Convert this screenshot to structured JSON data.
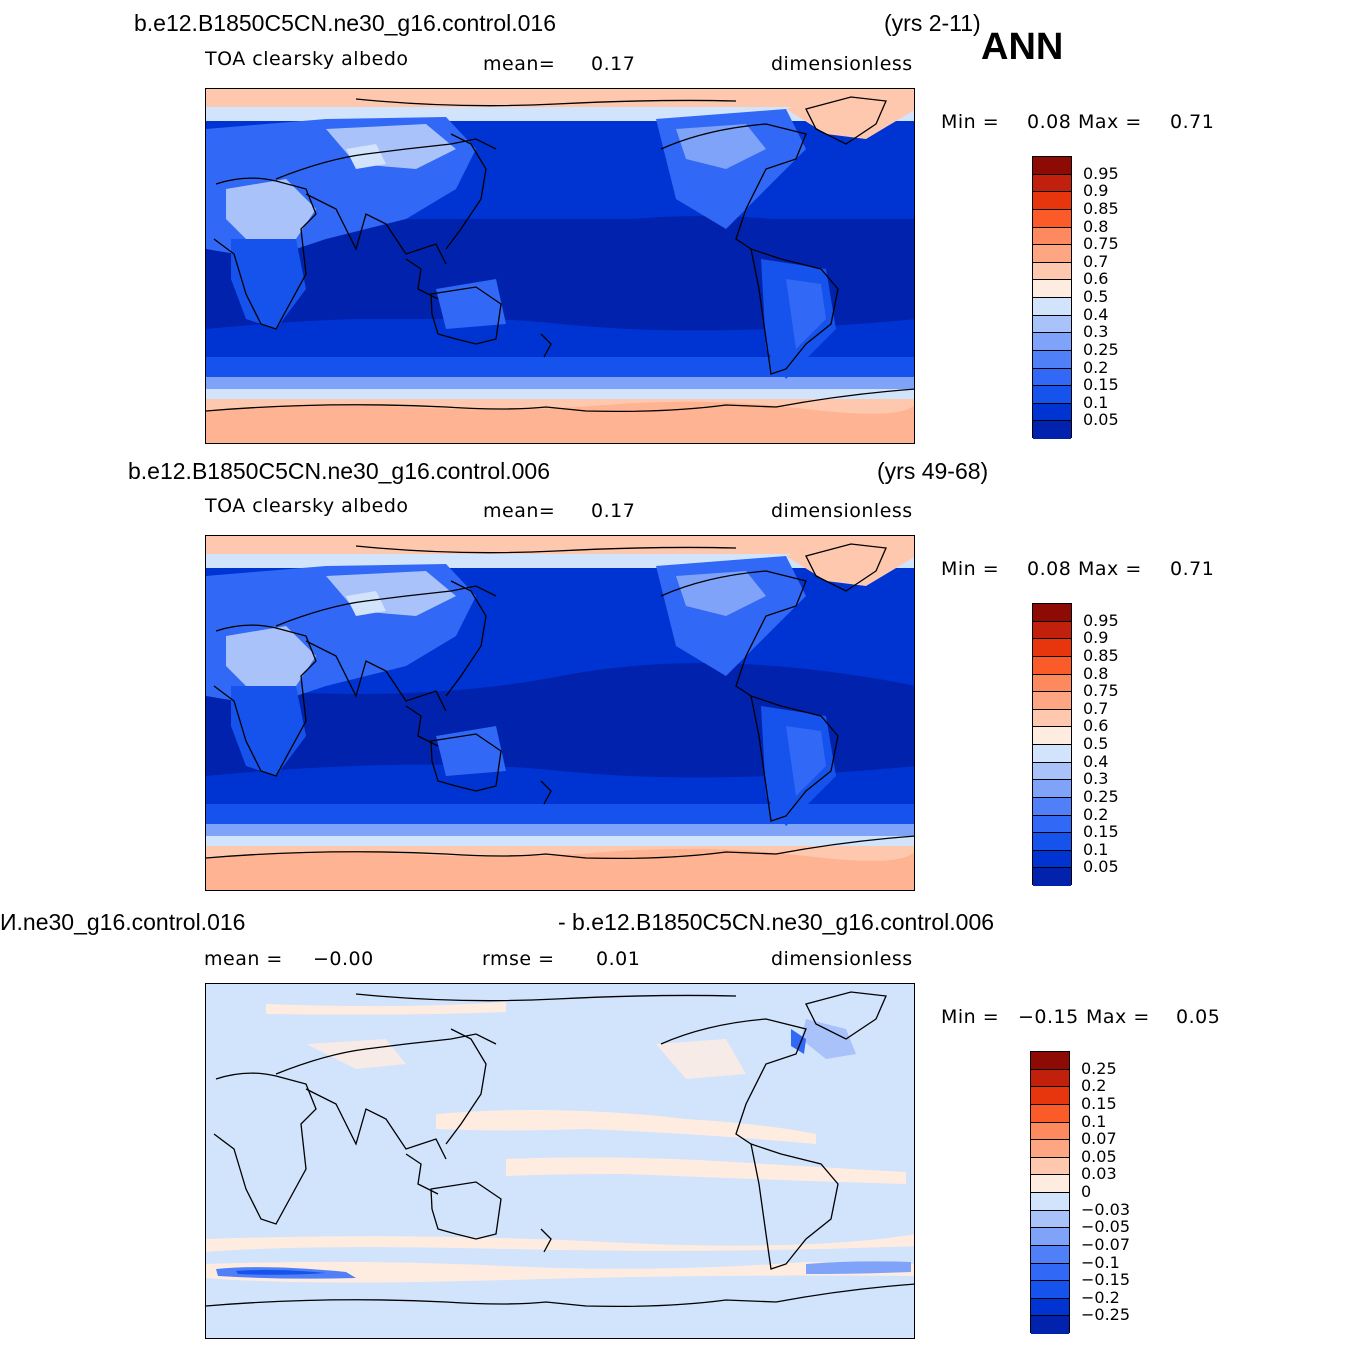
{
  "season": "ANN",
  "colors": {
    "abs_scale": [
      "#000e7f",
      "#0022ad",
      "#0034d2",
      "#1553ec",
      "#3168f6",
      "#4f80f8",
      "#7fa3f8",
      "#a9c2f9",
      "#d2e3fc",
      "#ffece0",
      "#fec8ae",
      "#fea681",
      "#fd8a5e",
      "#fb5b29",
      "#e7360e",
      "#c0200c",
      "#8e0a04"
    ],
    "diff_scale": [
      "#000e7f",
      "#0022ad",
      "#0034d2",
      "#1553ec",
      "#3168f6",
      "#4f80f8",
      "#7fa3f8",
      "#a9c2f9",
      "#d2e3fc",
      "#ffece0",
      "#fec8ae",
      "#fea681",
      "#fd8a5e",
      "#fb5b29",
      "#e7360e",
      "#c0200c",
      "#8e0a04"
    ]
  },
  "panels": [
    {
      "case": "b.e12.B1850C5CN.ne30_g16.control.016",
      "years": "(yrs 2-11)",
      "variable": "TOA  clearsky  albedo",
      "mean_label": "mean=",
      "mean_value": "0.17",
      "units": "dimensionless",
      "min_label": "Min  =",
      "min_value": "0.08",
      "max_label": "Max  =",
      "max_value": "0.71",
      "levels": [
        "0.95",
        "0.9",
        "0.85",
        "0.8",
        "0.75",
        "0.7",
        "0.6",
        "0.5",
        "0.4",
        "0.3",
        "0.25",
        "0.2",
        "0.15",
        "0.1",
        "0.05"
      ]
    },
    {
      "case": "b.e12.B1850C5CN.ne30_g16.control.006",
      "years": "(yrs 49-68)",
      "variable": "TOA  clearsky  albedo",
      "mean_label": "mean=",
      "mean_value": "0.17",
      "units": "dimensionless",
      "min_label": "Min  =",
      "min_value": "0.08",
      "max_label": "Max  =",
      "max_value": "0.71",
      "levels": [
        "0.95",
        "0.9",
        "0.85",
        "0.8",
        "0.75",
        "0.7",
        "0.6",
        "0.5",
        "0.4",
        "0.3",
        "0.25",
        "0.2",
        "0.15",
        "0.1",
        "0.05"
      ]
    },
    {
      "case": "И.ne30_g16.control.016",
      "case2": "- b.e12.B1850C5CN.ne30_g16.control.006",
      "mean_label": "mean  =",
      "mean_value": "−0.00",
      "rmse_label": "rmse  =",
      "rmse_value": "0.01",
      "units": "dimensionless",
      "min_label": "Min  =",
      "min_value": "−0.15",
      "max_label": "Max  =",
      "max_value": "0.05",
      "levels": [
        "0.25",
        "0.2",
        "0.15",
        "0.1",
        "0.07",
        "0.05",
        "0.03",
        "0",
        "−0.03",
        "−0.05",
        "−0.07",
        "−0.1",
        "−0.15",
        "−0.2",
        "−0.25"
      ]
    }
  ]
}
